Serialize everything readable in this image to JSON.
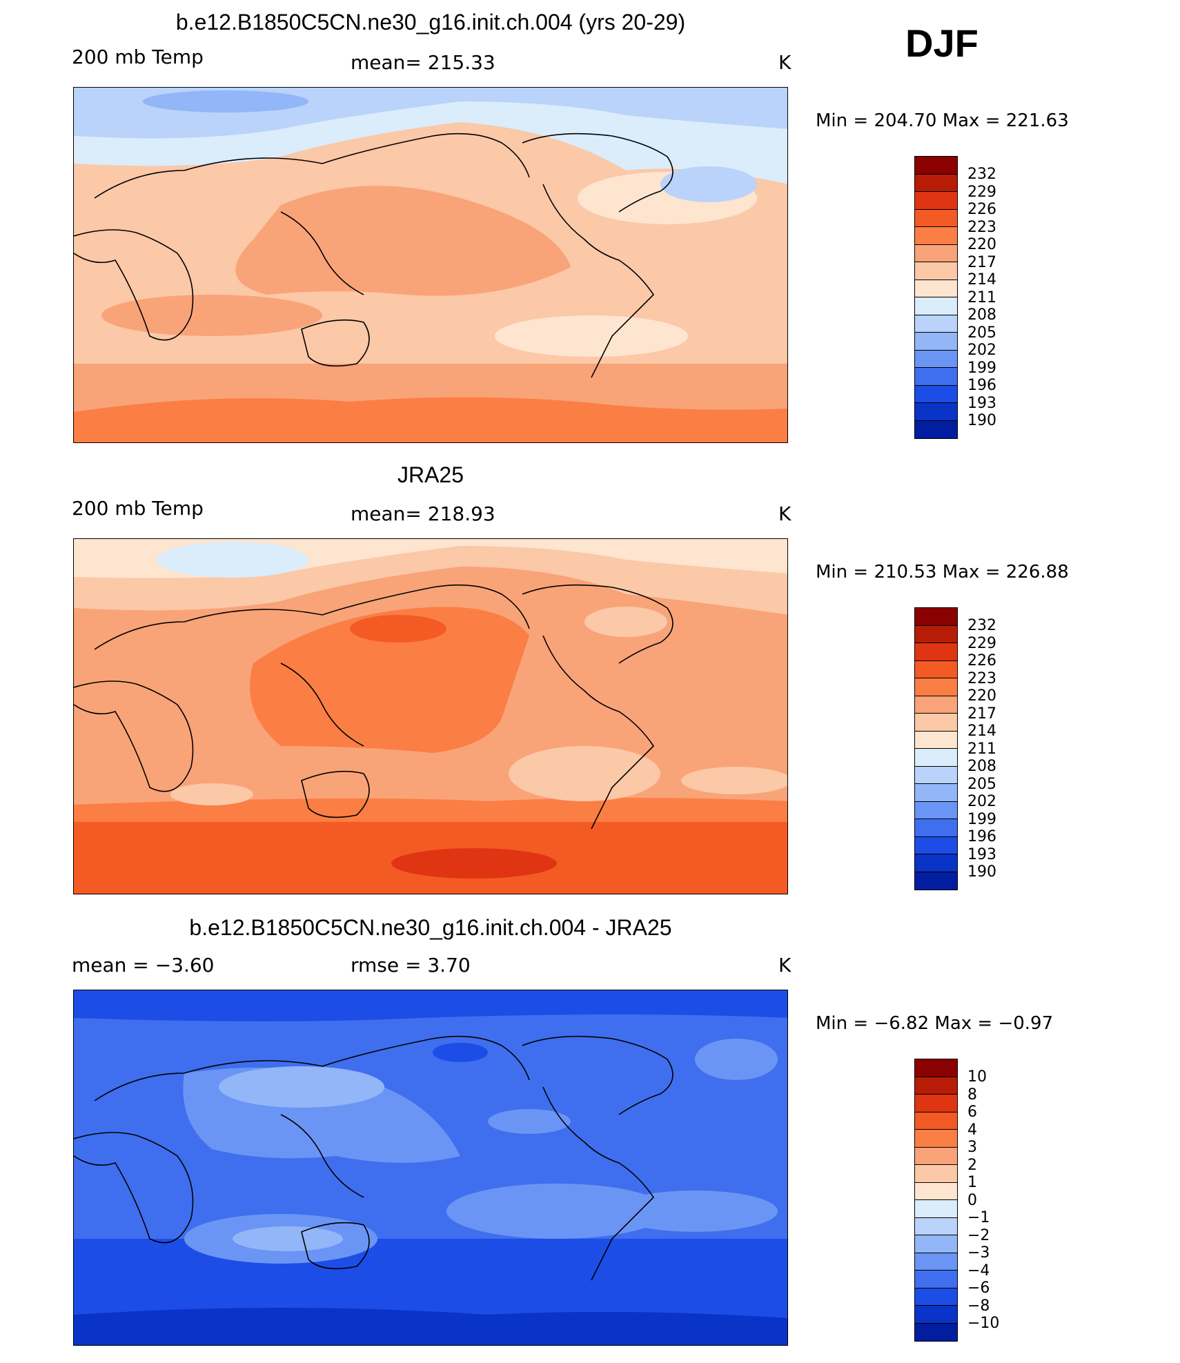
{
  "season": "DJF",
  "panels": [
    {
      "title": "b.e12.B1850C5CN.ne30_g16.init.ch.004 (yrs 20-29)",
      "left_label": "200 mb Temp",
      "center_label": "mean=  215.33",
      "units": "K",
      "stats": "Min  =  204.70  Max  =  221.63",
      "colorbar": [
        "232",
        "229",
        "226",
        "223",
        "220",
        "217",
        "214",
        "211",
        "208",
        "205",
        "202",
        "199",
        "196",
        "193",
        "190"
      ]
    },
    {
      "title": "JRA25",
      "left_label": "200 mb Temp",
      "center_label": "mean=  218.93",
      "units": "K",
      "stats": "Min  =  210.53  Max  =  226.88",
      "colorbar": [
        "232",
        "229",
        "226",
        "223",
        "220",
        "217",
        "214",
        "211",
        "208",
        "205",
        "202",
        "199",
        "196",
        "193",
        "190"
      ]
    },
    {
      "title": "b.e12.B1850C5CN.ne30_g16.init.ch.004 - JRA25",
      "left_label": "mean  =    −3.60",
      "center_label": "rmse  =     3.70",
      "units": "K",
      "stats": "Min  =    −6.82  Max  =    −0.97",
      "colorbar": [
        "10",
        "8",
        "6",
        "4",
        "3",
        "2",
        "1",
        "0",
        "−1",
        "−2",
        "−3",
        "−4",
        "−6",
        "−8",
        "−10"
      ]
    }
  ],
  "palette": [
    "#8b0000",
    "#b71c07",
    "#e03512",
    "#f45a24",
    "#fb7e45",
    "#f9a378",
    "#fbc8a8",
    "#fde5d0",
    "#dbecfb",
    "#b9d3fb",
    "#93b6f8",
    "#6b95f4",
    "#3f6fee",
    "#1c4de6",
    "#0a33c8",
    "#021d9f",
    "#000a7a"
  ],
  "chart_data": {
    "type": "heatmap",
    "description": "Global DJF 200 mb temperature maps",
    "series": [
      {
        "name": "b.e12.B1850C5CN.ne30_g16.init.ch.004 (yrs 20-29)",
        "mean": 215.33,
        "min": 204.7,
        "max": 221.63,
        "units": "K"
      },
      {
        "name": "JRA25",
        "mean": 218.93,
        "min": 210.53,
        "max": 226.88,
        "units": "K"
      },
      {
        "name": "b.e12.B1850C5CN.ne30_g16.init.ch.004 - JRA25",
        "mean": -3.6,
        "rmse": 3.7,
        "min": -6.82,
        "max": -0.97,
        "units": "K"
      }
    ],
    "levels_abs": [
      190,
      193,
      196,
      199,
      202,
      205,
      208,
      211,
      214,
      217,
      220,
      223,
      226,
      229,
      232
    ],
    "levels_diff": [
      -10,
      -8,
      -6,
      -4,
      -3,
      -2,
      -1,
      0,
      1,
      2,
      3,
      4,
      6,
      8,
      10
    ]
  }
}
